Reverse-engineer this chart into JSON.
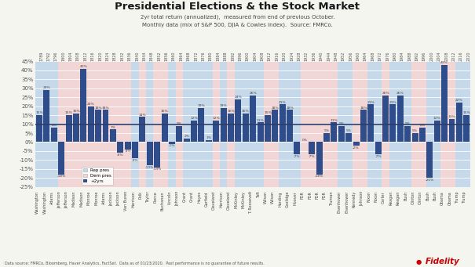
{
  "title": "Presidential Elections & the Stock Market",
  "subtitle1": "2yr total return (annualized),  measured from end of previous October.",
  "subtitle2": "Monthly data (mix of S&P 500, DJIA & Cowles index).  Source: FMRCo.",
  "footnote": "Data source: FMRCo, Bloomberg, Haver Analytics, FactSet.  Data as of 01/23/2020.  Past performance is no guarantee of future results.",
  "presidents": [
    {
      "name": "Washington",
      "year": "1789",
      "party": "Rep",
      "value": 15
    },
    {
      "name": "Washington",
      "year": "1792",
      "party": "Rep",
      "value": 29
    },
    {
      "name": "Adams",
      "year": "1796",
      "party": "Rep",
      "value": 8
    },
    {
      "name": "Jefferson",
      "year": "1800",
      "party": "Dem",
      "value": -18
    },
    {
      "name": "Jefferson",
      "year": "1804",
      "party": "Dem",
      "value": 15
    },
    {
      "name": "Madison",
      "year": "1808",
      "party": "Dem",
      "value": 16
    },
    {
      "name": "Madison",
      "year": "1812",
      "party": "Dem",
      "value": 41
    },
    {
      "name": "Monroe",
      "year": "1816",
      "party": "Dem",
      "value": 20
    },
    {
      "name": "Monroe",
      "year": "1820",
      "party": "Dem",
      "value": 18
    },
    {
      "name": "Adams",
      "year": "1824",
      "party": "Dem",
      "value": 18
    },
    {
      "name": "Jackson",
      "year": "1828",
      "party": "Dem",
      "value": 7
    },
    {
      "name": "Jackson",
      "year": "1832",
      "party": "Dem",
      "value": -6
    },
    {
      "name": "Van Buren",
      "year": "1836",
      "party": "Dem",
      "value": -4
    },
    {
      "name": "Harrison",
      "year": "1840",
      "party": "Rep",
      "value": -9
    },
    {
      "name": "Polk",
      "year": "1844",
      "party": "Dem",
      "value": 14
    },
    {
      "name": "Taylor",
      "year": "1848",
      "party": "Rep",
      "value": -13
    },
    {
      "name": "Pierce",
      "year": "1852",
      "party": "Dem",
      "value": -14
    },
    {
      "name": "Buchanan",
      "year": "1856",
      "party": "Dem",
      "value": 16
    },
    {
      "name": "Lincoln",
      "year": "1860",
      "party": "Rep",
      "value": -1
    },
    {
      "name": "Johnson",
      "year": "1864",
      "party": "Dem",
      "value": 9
    },
    {
      "name": "Grant",
      "year": "1868",
      "party": "Rep",
      "value": 2
    },
    {
      "name": "Grant",
      "year": "1872",
      "party": "Rep",
      "value": 12
    },
    {
      "name": "Hayes",
      "year": "1876",
      "party": "Rep",
      "value": 19
    },
    {
      "name": "Garfield",
      "year": "1880",
      "party": "Rep",
      "value": 1
    },
    {
      "name": "Cleveland",
      "year": "1884",
      "party": "Dem",
      "value": 12
    },
    {
      "name": "Harrison",
      "year": "1888",
      "party": "Rep",
      "value": 19
    },
    {
      "name": "Cleveland",
      "year": "1892",
      "party": "Dem",
      "value": 16
    },
    {
      "name": "McKinley",
      "year": "1896",
      "party": "Rep",
      "value": 24
    },
    {
      "name": "McKinley",
      "year": "1900",
      "party": "Rep",
      "value": 16
    },
    {
      "name": "T. Roosevelt",
      "year": "1904",
      "party": "Rep",
      "value": 26
    },
    {
      "name": "Taft",
      "year": "1908",
      "party": "Rep",
      "value": 11
    },
    {
      "name": "Wilson",
      "year": "1912",
      "party": "Dem",
      "value": 15
    },
    {
      "name": "Wilson",
      "year": "1916",
      "party": "Dem",
      "value": 18
    },
    {
      "name": "Harding",
      "year": "1920",
      "party": "Rep",
      "value": 21
    },
    {
      "name": "Coolidge",
      "year": "1924",
      "party": "Rep",
      "value": 18
    },
    {
      "name": "Hoover",
      "year": "1928",
      "party": "Rep",
      "value": -7
    },
    {
      "name": "FDR",
      "year": "1932",
      "party": "Dem",
      "value": 0
    },
    {
      "name": "FDR",
      "year": "1936",
      "party": "Dem",
      "value": -7
    },
    {
      "name": "FDR",
      "year": "1940",
      "party": "Dem",
      "value": -18
    },
    {
      "name": "FDR",
      "year": "1944",
      "party": "Dem",
      "value": 5
    },
    {
      "name": "Truman",
      "year": "1948",
      "party": "Dem",
      "value": 11
    },
    {
      "name": "Eisenhower",
      "year": "1952",
      "party": "Rep",
      "value": 9
    },
    {
      "name": "Eisenhower",
      "year": "1956",
      "party": "Rep",
      "value": 5
    },
    {
      "name": "Kennedy",
      "year": "1960",
      "party": "Dem",
      "value": -2
    },
    {
      "name": "Johnson",
      "year": "1964",
      "party": "Dem",
      "value": 18
    },
    {
      "name": "Nixon",
      "year": "1968",
      "party": "Rep",
      "value": 21
    },
    {
      "name": "Nixon",
      "year": "1972",
      "party": "Rep",
      "value": -7
    },
    {
      "name": "Carter",
      "year": "1976",
      "party": "Dem",
      "value": 26
    },
    {
      "name": "Reagan",
      "year": "1980",
      "party": "Rep",
      "value": 21
    },
    {
      "name": "Reagan",
      "year": "1984",
      "party": "Rep",
      "value": 26
    },
    {
      "name": "Bush",
      "year": "1988",
      "party": "Rep",
      "value": 9
    },
    {
      "name": "Clinton",
      "year": "1992",
      "party": "Dem",
      "value": 5
    },
    {
      "name": "Clinton",
      "year": "1996",
      "party": "Dem",
      "value": 8
    },
    {
      "name": "Bush",
      "year": "2000",
      "party": "Rep",
      "value": -20
    },
    {
      "name": "Bush",
      "year": "2004",
      "party": "Rep",
      "value": 12
    },
    {
      "name": "Obama",
      "year": "2008",
      "party": "Dem",
      "value": 43
    },
    {
      "name": "Obama",
      "year": "2012",
      "party": "Dem",
      "value": 13
    },
    {
      "name": "Trump",
      "year": "2016",
      "party": "Rep",
      "value": 22
    },
    {
      "name": "Trump",
      "year": "2020",
      "party": "Rep",
      "value": 15
    }
  ],
  "rep_color": "#c6d9ea",
  "dem_color": "#f2d5d5",
  "bar_color": "#2e4d8a",
  "ylim": [
    -25,
    45
  ],
  "yticks": [
    -25,
    -20,
    -15,
    -10,
    -5,
    0,
    5,
    10,
    15,
    20,
    25,
    30,
    35,
    40,
    45
  ],
  "bg_color": "#f5f5f0"
}
